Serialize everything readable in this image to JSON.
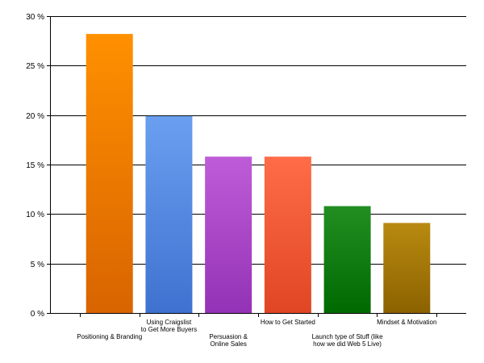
{
  "chart_data": {
    "type": "bar",
    "title": "",
    "xlabel": "",
    "ylabel": "",
    "categories": [
      [
        "Positioning & Branding"
      ],
      [
        "Using Craigslist",
        "to Get More Buyers"
      ],
      [
        "Persuasion &",
        "Online Sales"
      ],
      [
        "How to Get Started"
      ],
      [
        "Launch type of Stuff (like",
        "how we did Web 5 Live)"
      ],
      [
        "Mindset & Motivation"
      ]
    ],
    "values": [
      28.2,
      19.9,
      15.8,
      15.8,
      10.8,
      9.1
    ],
    "ylim": [
      0,
      30
    ],
    "yticks": [
      0,
      5,
      10,
      15,
      20,
      25,
      30
    ],
    "tick_suffix": " %",
    "grid": true,
    "legend": "none",
    "label_rows": [
      "low",
      "high",
      "low",
      "high",
      "low",
      "high"
    ],
    "colors": [
      [
        "#ff9000",
        "#d86400"
      ],
      [
        "#6a9ff0",
        "#3f72d0"
      ],
      [
        "#be5cd8",
        "#9432b6"
      ],
      [
        "#ff6c48",
        "#e04624"
      ],
      [
        "#228e22",
        "#006a00"
      ],
      [
        "#b88a10",
        "#8c6200"
      ]
    ]
  }
}
